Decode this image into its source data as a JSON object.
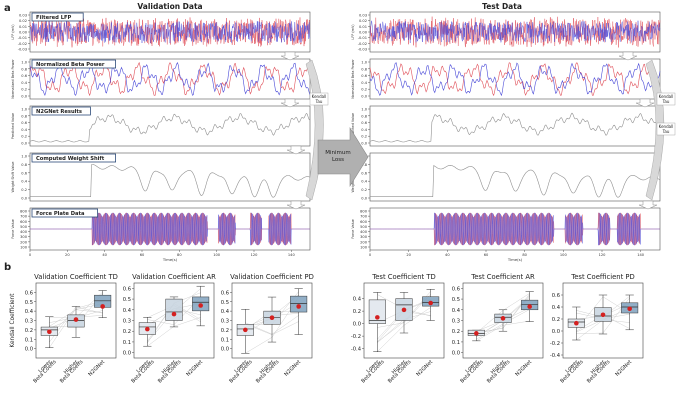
{
  "panel_labels": {
    "a": "a",
    "b": "b"
  },
  "column_titles": {
    "validation": "Validation Data",
    "test": "Test Data"
  },
  "row_titles": [
    "Filtered LFP",
    "Normalized Beta Power",
    "N2GNet Results",
    "Computed Weight Shift",
    "Force Plate Data"
  ],
  "side_labels": {
    "kendall_tau_1": "Kendall Tau",
    "kendall_tau_2": "Kendall Tau",
    "minimum_loss": "Minimum Loss"
  },
  "axis": {
    "xlabel": "Time(s)",
    "ylabels": [
      "LFP (mV)",
      "Normalized Beta Power",
      "Predicted Value",
      "Weight Shift Value",
      "Force Value"
    ],
    "xticks": [
      "0",
      "20",
      "40",
      "60",
      "80",
      "100",
      "120",
      "140"
    ],
    "yticks": [
      [
        "0.03",
        "0.02",
        "0.01",
        "0.00",
        "-0.01",
        "-0.02",
        "-0.03"
      ],
      [
        "1.0",
        "0.8",
        "0.6",
        "0.4",
        "0.2",
        "0.0"
      ],
      [
        "1.0",
        "0.8",
        "0.6",
        "0.4",
        "0.2",
        "0.0"
      ],
      [
        "1.0",
        "0.8",
        "0.6",
        "0.4",
        "0.2",
        "0.0"
      ],
      [
        "800",
        "700",
        "600",
        "500",
        "400",
        "300",
        "200",
        "100"
      ]
    ]
  },
  "colors": {
    "red": "#e0505a",
    "blue": "#4a4ad8",
    "purple": "#8a4bd0",
    "gray": "#909090",
    "box": "#b8c8da",
    "box_dark": "#7fa1bd",
    "dot": "#d42020",
    "arrow": "#b8b8b8"
  },
  "chart_data": [
    {
      "type": "box",
      "title": "Validation Coefficient TD",
      "ylabel": "Kendall Coefficient",
      "categories": [
        "Lower Beta Coeffs",
        "Higher Beta Coeffs",
        "N2GNet"
      ],
      "ylim": [
        -0.1,
        0.7
      ],
      "yticks": [
        "0.0",
        "0.1",
        "0.2",
        "0.3",
        "0.4",
        "0.5",
        "0.6"
      ],
      "boxes": [
        {
          "q1": 0.14,
          "median": 0.2,
          "q3": 0.23,
          "lo": 0.01,
          "hi": 0.34,
          "mean": 0.18
        },
        {
          "q1": 0.23,
          "median": 0.3,
          "q3": 0.36,
          "lo": 0.12,
          "hi": 0.45,
          "mean": 0.31
        },
        {
          "q1": 0.44,
          "median": 0.51,
          "q3": 0.57,
          "lo": 0.33,
          "hi": 0.62,
          "mean": 0.45
        }
      ]
    },
    {
      "type": "box",
      "title": "Validation Coefficient AR",
      "ylabel": "",
      "categories": [
        "Lower Beta Coeffs",
        "Higher Beta Coeffs",
        "N2GNet"
      ],
      "ylim": [
        -0.05,
        0.65
      ],
      "yticks": [
        "0.0",
        "0.1",
        "0.2",
        "0.3",
        "0.4",
        "0.5",
        "0.6"
      ],
      "boxes": [
        {
          "q1": 0.17,
          "median": 0.24,
          "q3": 0.28,
          "lo": 0.06,
          "hi": 0.33,
          "mean": 0.22
        },
        {
          "q1": 0.3,
          "median": 0.38,
          "q3": 0.5,
          "lo": 0.24,
          "hi": 0.52,
          "mean": 0.36
        },
        {
          "q1": 0.39,
          "median": 0.47,
          "q3": 0.52,
          "lo": 0.25,
          "hi": 0.62,
          "mean": 0.44
        }
      ]
    },
    {
      "type": "box",
      "title": "Validation Coefficient PD",
      "ylabel": "",
      "categories": [
        "Lower Beta Coeffs",
        "Higher Beta Coeffs",
        "N2GNet"
      ],
      "ylim": [
        -0.1,
        0.7
      ],
      "yticks": [
        "0.0",
        "0.1",
        "0.2",
        "0.3",
        "0.4",
        "0.5",
        "0.6"
      ],
      "boxes": [
        {
          "q1": 0.14,
          "median": 0.21,
          "q3": 0.26,
          "lo": -0.05,
          "hi": 0.42,
          "mean": 0.2
        },
        {
          "q1": 0.26,
          "median": 0.33,
          "q3": 0.4,
          "lo": 0.07,
          "hi": 0.55,
          "mean": 0.33
        },
        {
          "q1": 0.39,
          "median": 0.48,
          "q3": 0.56,
          "lo": 0.15,
          "hi": 0.64,
          "mean": 0.45
        }
      ]
    },
    {
      "type": "box",
      "title": "Test Coefficient TD",
      "ylabel": "",
      "categories": [
        "Lower Beta Coeffs",
        "Higher Beta Coeffs",
        "N2GNet"
      ],
      "ylim": [
        -0.55,
        0.65
      ],
      "yticks": [
        "-0.4",
        "-0.2",
        "0.0",
        "0.2",
        "0.4"
      ],
      "boxes": [
        {
          "q1": 0.0,
          "median": 0.05,
          "q3": 0.38,
          "lo": -0.45,
          "hi": 0.5,
          "mean": 0.1
        },
        {
          "q1": 0.05,
          "median": 0.3,
          "q3": 0.4,
          "lo": -0.15,
          "hi": 0.5,
          "mean": 0.22
        },
        {
          "q1": 0.28,
          "median": 0.34,
          "q3": 0.43,
          "lo": 0.05,
          "hi": 0.55,
          "mean": 0.33
        }
      ]
    },
    {
      "type": "box",
      "title": "Test Coefficient AR",
      "ylabel": "",
      "categories": [
        "Lower Beta Coeffs",
        "Higher Beta Coeffs",
        "N2GNet"
      ],
      "ylim": [
        -0.05,
        0.65
      ],
      "yticks": [
        "0.0",
        "0.1",
        "0.2",
        "0.3",
        "0.4",
        "0.5",
        "0.6"
      ],
      "boxes": [
        {
          "q1": 0.16,
          "median": 0.18,
          "q3": 0.21,
          "lo": 0.11,
          "hi": 0.21,
          "mean": 0.18
        },
        {
          "q1": 0.28,
          "median": 0.33,
          "q3": 0.36,
          "lo": 0.2,
          "hi": 0.4,
          "mean": 0.32
        },
        {
          "q1": 0.4,
          "median": 0.45,
          "q3": 0.49,
          "lo": 0.29,
          "hi": 0.57,
          "mean": 0.43
        }
      ]
    },
    {
      "type": "box",
      "title": "Test Coefficient PD",
      "ylabel": "",
      "categories": [
        "Lower Beta Coeffs",
        "Higher Beta Coeffs",
        "N2GNet"
      ],
      "ylim": [
        -0.45,
        0.8
      ],
      "yticks": [
        "-0.4",
        "-0.2",
        "0.0",
        "0.2",
        "0.4",
        "0.6"
      ],
      "boxes": [
        {
          "q1": 0.06,
          "median": 0.15,
          "q3": 0.2,
          "lo": -0.15,
          "hi": 0.4,
          "mean": 0.13
        },
        {
          "q1": 0.16,
          "median": 0.25,
          "q3": 0.39,
          "lo": -0.05,
          "hi": 0.6,
          "mean": 0.27
        },
        {
          "q1": 0.3,
          "median": 0.4,
          "q3": 0.47,
          "lo": 0.02,
          "hi": 0.6,
          "mean": 0.37
        }
      ]
    }
  ]
}
